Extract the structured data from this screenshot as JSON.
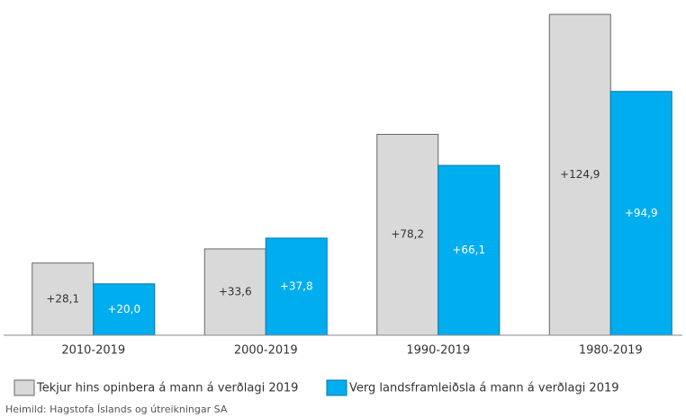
{
  "chart_data": {
    "type": "bar",
    "categories": [
      "2010-2019",
      "2000-2019",
      "1990-2019",
      "1980-2019"
    ],
    "series": [
      {
        "name": "Tekjur hins opinbera á mann á verðlagi 2019",
        "color": "#d9d9d9",
        "values": [
          28.1,
          33.6,
          78.2,
          124.9
        ],
        "value_labels": [
          "+28,1",
          "+33,6",
          "+78,2",
          "+124,9"
        ]
      },
      {
        "name": "Verg landsframleiðsla á mann á verðlagi 2019",
        "color": "#00aeef",
        "values": [
          20.0,
          37.8,
          66.1,
          94.9
        ],
        "value_labels": [
          "+20,0",
          "+37,8",
          "+66,1",
          "+94,9"
        ]
      }
    ],
    "source": "Heimild: Hagstofa Íslands og útreikningar SA"
  }
}
